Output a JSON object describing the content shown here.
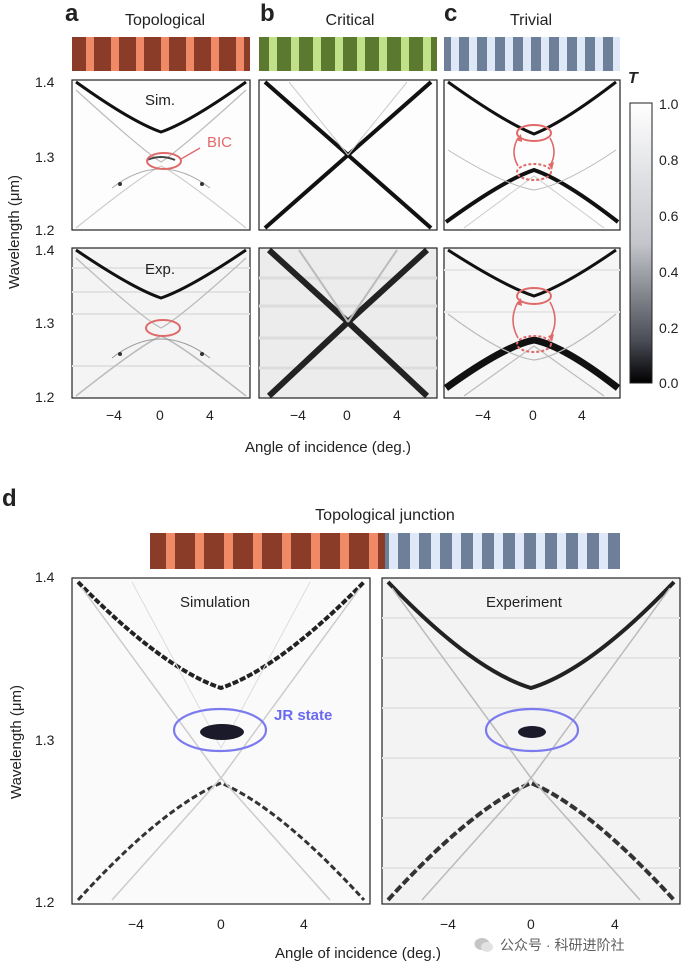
{
  "panels_top": {
    "a": {
      "letter": "a",
      "title": "Topological"
    },
    "b": {
      "letter": "b",
      "title": "Critical"
    },
    "c": {
      "letter": "c",
      "title": "Trivial"
    }
  },
  "row_labels": {
    "sim": "Sim.",
    "exp": "Exp."
  },
  "annotation_bic": "BIC",
  "y_axis": {
    "label": "Wavelength (μm)",
    "ticks_top": [
      "1.4",
      "1.3",
      "1.2"
    ],
    "ticks_bottom": [
      "1.4",
      "1.3",
      "1.2"
    ]
  },
  "x_axis": {
    "label": "Angle of incidence (deg.)",
    "ticks": [
      "−4",
      "0",
      "4"
    ]
  },
  "colorbar": {
    "title": "T",
    "ticks": [
      "1.0",
      "0.8",
      "0.6",
      "0.4",
      "0.2",
      "0.0"
    ],
    "range": [
      0,
      1
    ]
  },
  "panel_d": {
    "letter": "d",
    "title": "Topological junction",
    "sim_label": "Simulation",
    "exp_label": "Experiment",
    "annotation": "JR state",
    "y_ticks": [
      "1.4",
      "1.3",
      "1.2"
    ],
    "x_ticks": [
      "−4",
      "0",
      "4"
    ],
    "x_label": "Angle of incidence (deg.)",
    "y_label": "Wavelength (μm)"
  },
  "watermark": "公众号 · 科研进阶社",
  "colors": {
    "bic_ring": "#e06a6a",
    "jr_ring": "#7b7bef",
    "topo_strip": "#b5553a",
    "critical_strip": "#8aa84a",
    "trivial_strip": "#8aa0c0"
  }
}
